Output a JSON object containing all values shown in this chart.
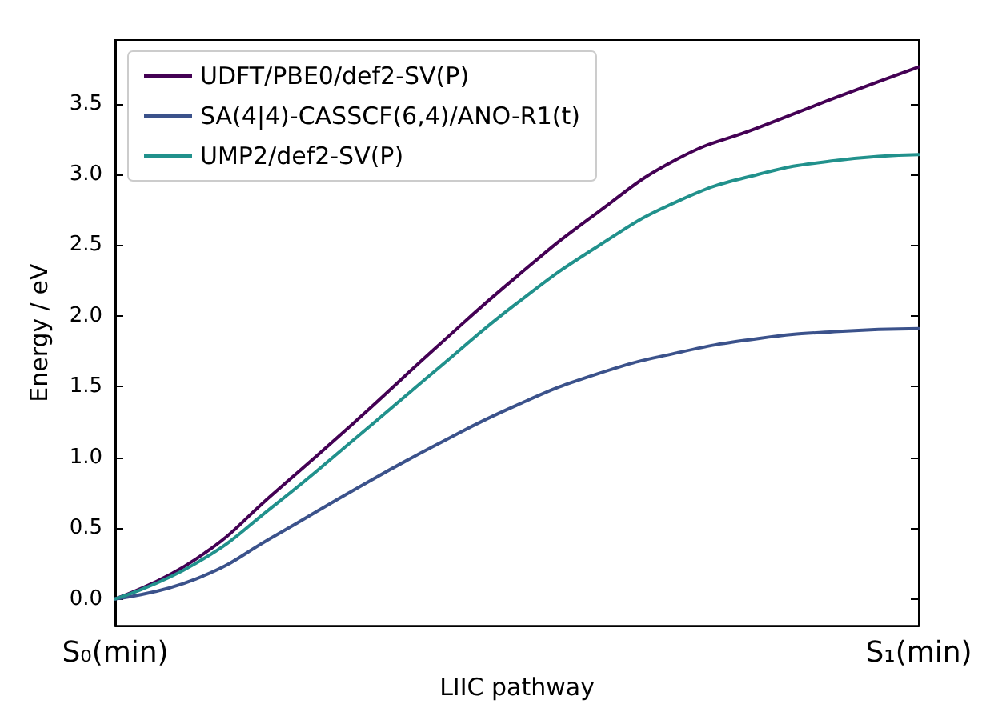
{
  "chart_data": {
    "type": "line",
    "xlabel": "LIIC pathway",
    "ylabel": "Energy / eV",
    "categories": [
      "S₀(min)",
      null,
      null,
      null,
      null,
      null,
      null,
      null,
      null,
      null,
      "S₁(min)"
    ],
    "series": [
      {
        "name": "UDFT/PBE0/def2-SV(P)",
        "color": "#440154",
        "values": [
          0,
          0.28,
          0.76,
          1.26,
          1.78,
          2.28,
          2.73,
          3.11,
          3.33,
          3.55,
          3.76
        ]
      },
      {
        "name": "SA(4|4)-CASSCF(6,4)/ANO-R1(t)",
        "color": "#3b528b",
        "values": [
          0,
          0.14,
          0.45,
          0.78,
          1.09,
          1.37,
          1.59,
          1.74,
          1.84,
          1.89,
          1.91
        ]
      },
      {
        "name": "UMP2/def2-SV(P)",
        "color": "#21918c",
        "values": [
          0,
          0.25,
          0.67,
          1.14,
          1.62,
          2.09,
          2.49,
          2.81,
          3.0,
          3.1,
          3.14
        ]
      }
    ],
    "ylim": [
      -0.19,
      3.95
    ],
    "yticks": [
      {
        "value": 0,
        "label": "0.0"
      },
      {
        "value": 0.5,
        "label": "0.5"
      },
      {
        "value": 1,
        "label": "1.0"
      },
      {
        "value": 1.5,
        "label": "1.5"
      },
      {
        "value": 2,
        "label": "2.0"
      },
      {
        "value": 2.5,
        "label": "2.5"
      },
      {
        "value": 3,
        "label": "3.0"
      },
      {
        "value": 3.5,
        "label": "3.5"
      }
    ],
    "grid": false,
    "legend": "top left",
    "marker": "none",
    "line_style": "solid"
  }
}
